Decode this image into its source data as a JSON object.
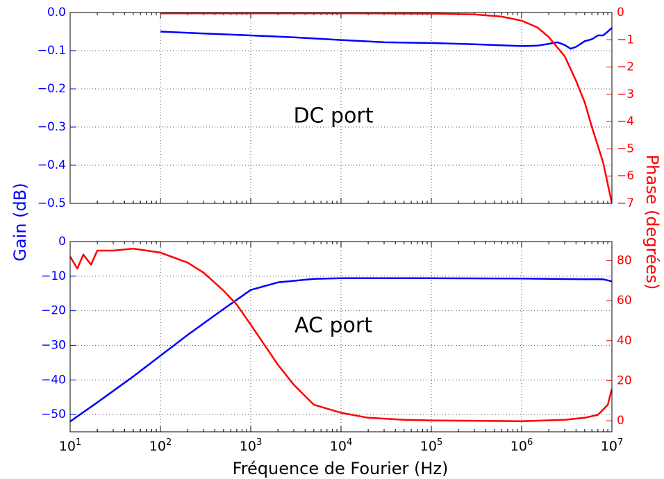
{
  "chart_data": [
    {
      "type": "line",
      "annotation": "DC port",
      "x_scale": "log",
      "xlim": [
        10,
        10000000
      ],
      "ylabel_left": "Gain (dB)",
      "ylabel_right": "Phase (degrées)",
      "grid": true,
      "y_left": {
        "ylim": [
          -0.5,
          0.0
        ],
        "ticks": [
          0.0,
          -0.1,
          -0.2,
          -0.3,
          -0.4,
          -0.5
        ],
        "tick_labels": [
          "0.0",
          "−0.1",
          "−0.2",
          "−0.3",
          "−0.4",
          "−0.5"
        ],
        "color": "#0000ff"
      },
      "y_right": {
        "ylim": [
          -7,
          0
        ],
        "ticks": [
          0,
          -1,
          -2,
          -3,
          -4,
          -5,
          -6,
          -7
        ],
        "tick_labels": [
          "0",
          "−1",
          "−2",
          "−3",
          "−4",
          "−5",
          "−6",
          "−7"
        ],
        "color": "#ff0000"
      },
      "series": [
        {
          "axis": "left",
          "color": "#0000ff",
          "x": [
            100,
            300,
            1000,
            3000,
            10000,
            30000,
            100000,
            300000,
            1000000,
            1500000,
            2000000,
            2500000,
            3000000,
            3500000,
            4000000,
            5000000,
            6000000,
            7000000,
            8000000,
            9000000,
            10000000
          ],
          "y": [
            -0.05,
            -0.055,
            -0.06,
            -0.065,
            -0.072,
            -0.078,
            -0.08,
            -0.083,
            -0.088,
            -0.087,
            -0.082,
            -0.078,
            -0.085,
            -0.095,
            -0.09,
            -0.075,
            -0.07,
            -0.06,
            -0.06,
            -0.05,
            -0.04
          ]
        },
        {
          "axis": "right",
          "color": "#ff0000",
          "x": [
            100,
            1000,
            10000,
            100000,
            300000,
            600000,
            1000000,
            1500000,
            2000000,
            3000000,
            4000000,
            5000000,
            6000000,
            7000000,
            8000000,
            9000000,
            10000000
          ],
          "y": [
            -0.03,
            -0.03,
            -0.03,
            -0.04,
            -0.07,
            -0.15,
            -0.3,
            -0.55,
            -0.9,
            -1.6,
            -2.5,
            -3.3,
            -4.2,
            -4.9,
            -5.5,
            -6.3,
            -7.0
          ]
        }
      ]
    },
    {
      "type": "line",
      "annotation": "AC port",
      "x_scale": "log",
      "xlim": [
        10,
        10000000
      ],
      "xlabel": "Fréquence de Fourier (Hz)",
      "x_tick_bases": [
        "10",
        "10",
        "10",
        "10",
        "10",
        "10",
        "10"
      ],
      "x_tick_exps": [
        "1",
        "2",
        "3",
        "4",
        "5",
        "6",
        "7"
      ],
      "ylabel_left": "Gain (dB)",
      "ylabel_right": "Phase (degrées)",
      "grid": true,
      "y_left": {
        "ylim": [
          -55,
          0
        ],
        "ticks": [
          0,
          -10,
          -20,
          -30,
          -40,
          -50
        ],
        "tick_labels": [
          "0",
          "−10",
          "−20",
          "−30",
          "−40",
          "−50"
        ],
        "color": "#0000ff"
      },
      "y_right": {
        "ylim": [
          -5.5,
          89.5
        ],
        "ticks": [
          0,
          20,
          40,
          60,
          80
        ],
        "tick_labels": [
          "0",
          "20",
          "40",
          "60",
          "80"
        ],
        "color": "#ff0000"
      },
      "series": [
        {
          "axis": "left",
          "color": "#0000ff",
          "x": [
            10,
            20,
            50,
            100,
            200,
            500,
            1000,
            2000,
            5000,
            10000,
            100000,
            1000000,
            5000000,
            8000000,
            10000000
          ],
          "y": [
            -52,
            -46.5,
            -39,
            -33,
            -27,
            -19.5,
            -14,
            -11.8,
            -10.8,
            -10.6,
            -10.6,
            -10.7,
            -10.9,
            -10.9,
            -11.5
          ]
        },
        {
          "axis": "right",
          "color": "#ff0000",
          "x": [
            10,
            12,
            14,
            17,
            20,
            30,
            50,
            100,
            200,
            300,
            500,
            700,
            1000,
            2000,
            3000,
            5000,
            10000,
            20000,
            50000,
            100000,
            300000,
            1000000,
            3000000,
            5000000,
            7000000,
            9000000,
            10000000
          ],
          "y": [
            82,
            76,
            83,
            78,
            85,
            85,
            86,
            84,
            79,
            74,
            65,
            58,
            48,
            28,
            18,
            8,
            4,
            1.5,
            0.5,
            0.2,
            0,
            -0.2,
            0.5,
            1.5,
            3,
            8,
            16
          ]
        }
      ]
    }
  ]
}
